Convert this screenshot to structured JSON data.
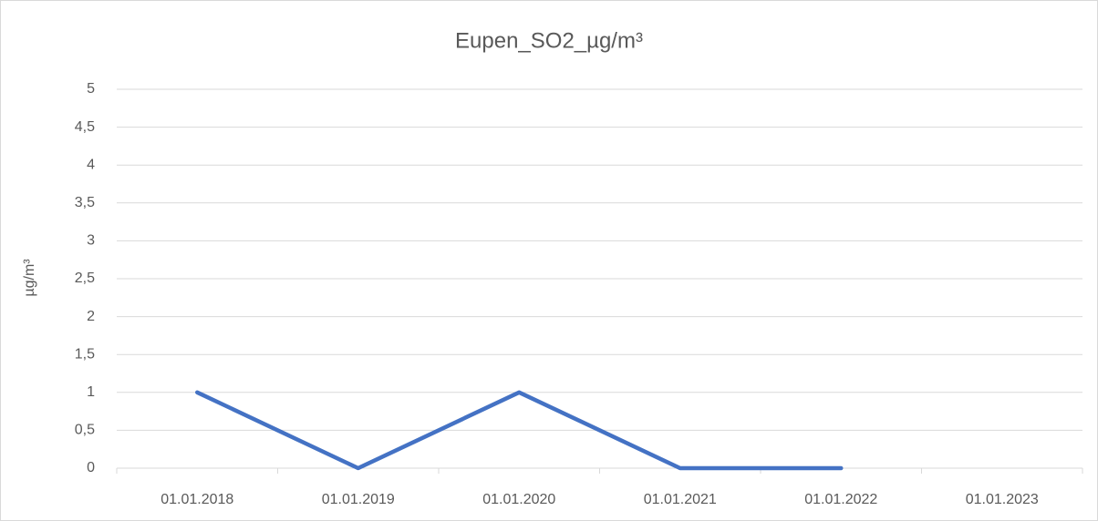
{
  "chart_data": {
    "type": "line",
    "title": "Eupen_SO2_µg/m³",
    "y_label": "µg/m³",
    "categories": [
      "01.01.2018",
      "01.01.2019",
      "01.01.2020",
      "01.01.2021",
      "01.01.2022",
      "01.01.2023"
    ],
    "series": [
      {
        "name": "Eupen_SO2_µg/m³",
        "color": "#4472c4",
        "values": [
          1,
          0,
          1,
          0,
          0,
          null
        ]
      }
    ],
    "ylim": [
      0,
      5
    ],
    "yticks": [
      0,
      {
        "value": 0.5,
        "label": "0,5"
      },
      1,
      {
        "value": 1.5,
        "label": "1,5"
      },
      2,
      {
        "value": 2.5,
        "label": "2,5"
      },
      3,
      {
        "value": 3.5,
        "label": "3,5"
      },
      4,
      {
        "value": 4.5,
        "label": "4,5"
      },
      5
    ],
    "grid": true
  }
}
